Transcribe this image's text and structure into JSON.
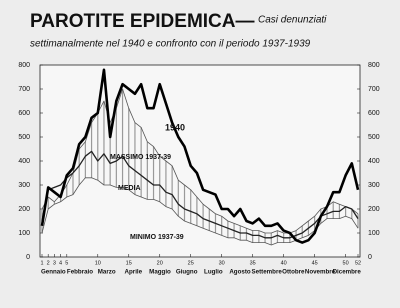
{
  "chart_data": {
    "type": "line",
    "title": "PAROTITE EPIDEMICA—",
    "subtitle": [
      "Casi denunziati",
      "settimanalmente nel 1940 e confronto con il periodo 1937-1939"
    ],
    "x": [
      1,
      2,
      3,
      4,
      5,
      6,
      7,
      8,
      9,
      10,
      11,
      12,
      13,
      14,
      15,
      16,
      17,
      18,
      19,
      20,
      21,
      22,
      23,
      24,
      25,
      26,
      27,
      28,
      29,
      30,
      31,
      32,
      33,
      34,
      35,
      36,
      37,
      38,
      39,
      40,
      41,
      42,
      43,
      44,
      45,
      46,
      47,
      48,
      49,
      50,
      51,
      52
    ],
    "months": [
      "Gennaio",
      "Febbraio",
      "Marzo",
      "Aprile",
      "Maggio",
      "Giugno",
      "Luglio",
      "Agosto",
      "Settembre",
      "Ottobre",
      "Novembre",
      "Dicembre"
    ],
    "series": [
      {
        "name": "1940",
        "color": "#000000",
        "values": [
          130,
          290,
          270,
          250,
          340,
          370,
          470,
          500,
          580,
          600,
          780,
          500,
          650,
          720,
          700,
          680,
          720,
          620,
          620,
          720,
          640,
          560,
          500,
          460,
          380,
          350,
          280,
          270,
          260,
          200,
          200,
          170,
          200,
          150,
          140,
          160,
          130,
          130,
          140,
          110,
          100,
          70,
          60,
          70,
          100,
          170,
          210,
          270,
          270,
          340,
          390,
          280
        ]
      },
      {
        "name": "MASSIMO 1937-39",
        "color": "#555555",
        "values": [
          200,
          250,
          230,
          260,
          300,
          350,
          450,
          480,
          560,
          600,
          650,
          560,
          620,
          700,
          620,
          560,
          540,
          480,
          460,
          420,
          400,
          380,
          320,
          300,
          280,
          250,
          220,
          200,
          180,
          170,
          150,
          140,
          130,
          120,
          110,
          110,
          100,
          100,
          110,
          100,
          100,
          110,
          130,
          150,
          170,
          200,
          210,
          230,
          220,
          210,
          200,
          180
        ]
      },
      {
        "name": "MEDIA",
        "color": "#222222",
        "values": [
          150,
          280,
          290,
          300,
          330,
          350,
          380,
          420,
          440,
          400,
          430,
          390,
          400,
          420,
          380,
          360,
          340,
          320,
          300,
          300,
          270,
          260,
          220,
          200,
          190,
          180,
          160,
          150,
          140,
          130,
          120,
          110,
          100,
          100,
          90,
          90,
          80,
          80,
          90,
          80,
          80,
          90,
          100,
          120,
          140,
          170,
          180,
          190,
          190,
          210,
          200,
          160
        ]
      },
      {
        "name": "MINIMO 1937-39",
        "color": "#555555",
        "values": [
          100,
          200,
          220,
          230,
          250,
          260,
          300,
          330,
          330,
          320,
          300,
          300,
          290,
          290,
          280,
          260,
          250,
          240,
          240,
          230,
          210,
          200,
          170,
          150,
          140,
          130,
          120,
          110,
          100,
          90,
          80,
          80,
          70,
          70,
          60,
          60,
          60,
          50,
          60,
          60,
          60,
          70,
          80,
          90,
          110,
          140,
          160,
          160,
          160,
          170,
          160,
          120
        ]
      }
    ],
    "xlim": [
      1,
      52
    ],
    "xticks": [
      1,
      2,
      3,
      4,
      5,
      10,
      15,
      20,
      25,
      30,
      35,
      40,
      45,
      50,
      52
    ],
    "ylim": [
      0,
      800
    ],
    "yticks": [
      0,
      100,
      200,
      300,
      400,
      500,
      600,
      700,
      800
    ],
    "y2lim": [
      0,
      800
    ],
    "y2ticks": [
      0,
      100,
      200,
      300,
      400,
      500,
      600,
      700,
      800
    ]
  }
}
